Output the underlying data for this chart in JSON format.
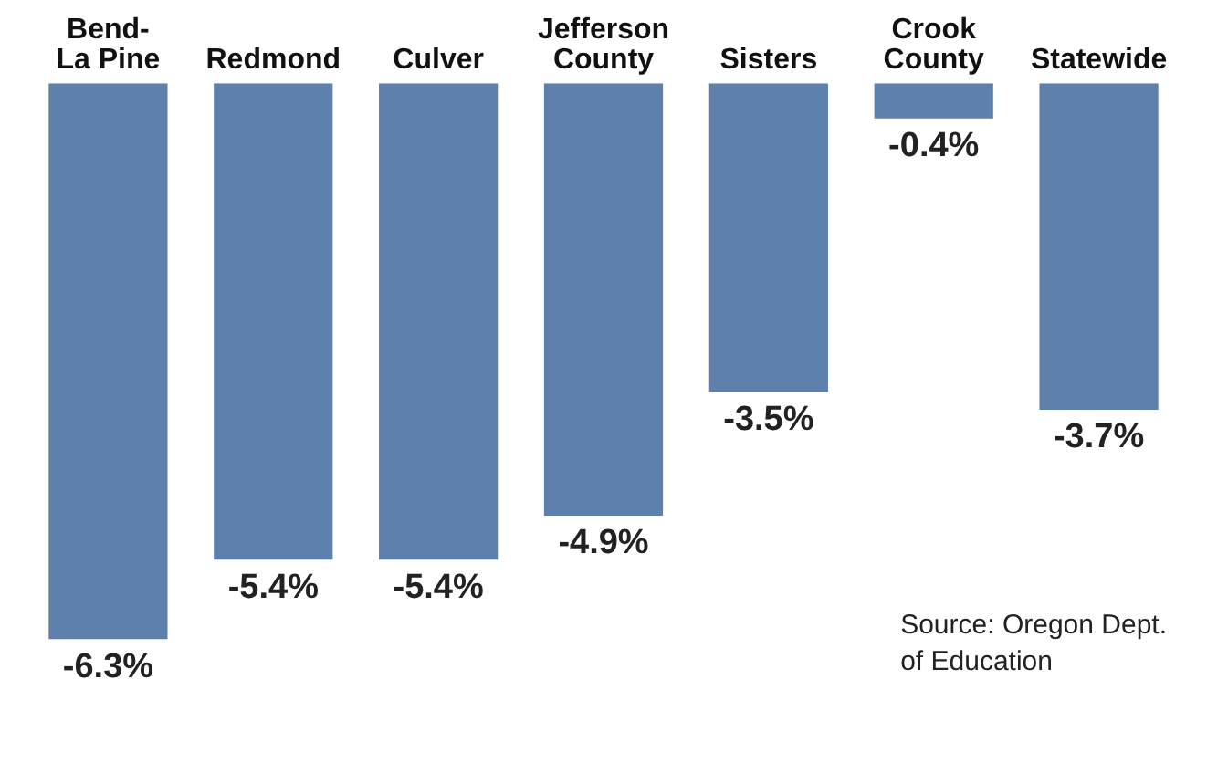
{
  "chart_data": {
    "type": "bar",
    "categories": [
      "Bend-\nLa Pine",
      "Redmond",
      "Culver",
      "Jefferson\nCounty",
      "Sisters",
      "Crook\nCounty",
      "Statewide"
    ],
    "values": [
      -6.3,
      -5.4,
      -5.4,
      -4.9,
      -3.5,
      -0.4,
      -3.7
    ],
    "value_labels": [
      "-6.3%",
      "-5.4%",
      "-5.4%",
      "-4.9%",
      "-3.5%",
      "-0.4%",
      "-3.7%"
    ],
    "color": "#5e81ab",
    "grid": false,
    "legend": false,
    "annotations": [
      "Source: Oregon Dept.\nof Education"
    ]
  }
}
